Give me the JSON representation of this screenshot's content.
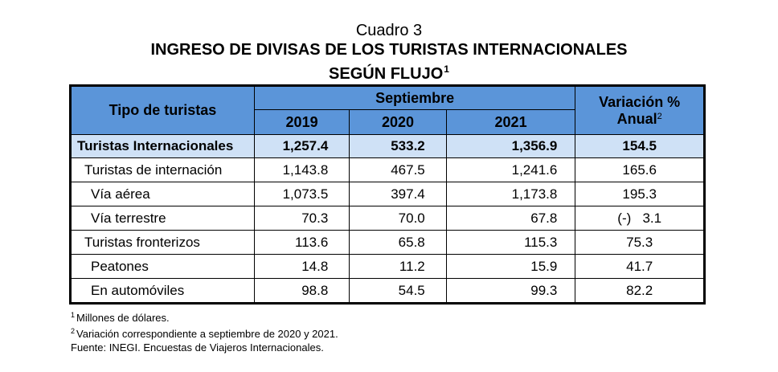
{
  "caption": "Cuadro 3",
  "title_line1": "INGRESO DE DIVISAS DE LOS TURISTAS INTERNACIONALES",
  "title_line2": "SEGÚN FLUJO",
  "title_sup": "1",
  "colors": {
    "header_bg": "#5b95d9",
    "total_bg": "#cfe1f6"
  },
  "table": {
    "header": {
      "tipo": "Tipo de turistas",
      "month": "Septiembre",
      "years": [
        "2019",
        "2020",
        "2021"
      ],
      "variation": "Variación %",
      "variation2": "Anual",
      "variation_sup": "2"
    },
    "rows": [
      {
        "label": "Turistas Internacionales",
        "v2019": "1,257.4",
        "v2020": "533.2",
        "v2021": "1,356.9",
        "var": "154.5"
      },
      {
        "label": "Turistas de internación",
        "v2019": "1,143.8",
        "v2020": "467.5",
        "v2021": "1,241.6",
        "var": "165.6"
      },
      {
        "label": "Vía aérea",
        "v2019": "1,073.5",
        "v2020": "397.4",
        "v2021": "1,173.8",
        "var": "195.3"
      },
      {
        "label": "Vía terrestre",
        "v2019": "70.3",
        "v2020": "70.0",
        "v2021": "67.8",
        "var_sign": "(-)",
        "var": "3.1"
      },
      {
        "label": "Turistas fronterizos",
        "v2019": "113.6",
        "v2020": "65.8",
        "v2021": "115.3",
        "var": "75.3"
      },
      {
        "label": "Peatones",
        "v2019": "14.8",
        "v2020": "11.2",
        "v2021": "15.9",
        "var": "41.7"
      },
      {
        "label": "En automóviles",
        "v2019": "98.8",
        "v2020": "54.5",
        "v2021": "99.3",
        "var": "82.2"
      }
    ]
  },
  "notes": {
    "n1_sup": "1",
    "n1": "Millones de dólares.",
    "n2_sup": "2",
    "n2": "Variación correspondiente a septiembre de 2020 y 2021.",
    "source": "Fuente: INEGI. Encuestas de Viajeros Internacionales."
  }
}
